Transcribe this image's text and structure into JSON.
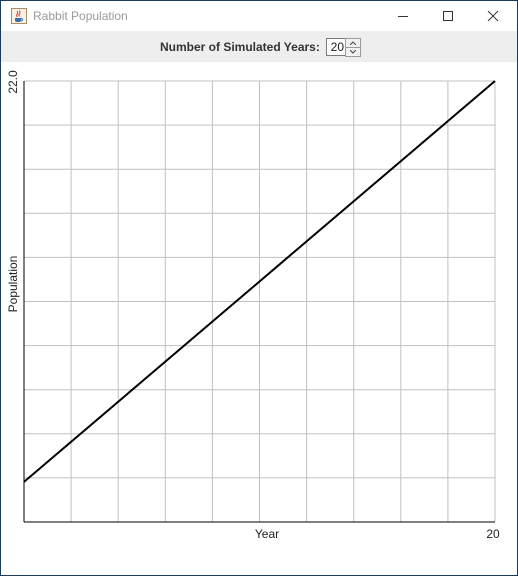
{
  "window": {
    "title": "Rabbit Population",
    "app_icon": "java-coffee-cup-icon",
    "controls": {
      "minimize_icon": "minimize-icon",
      "maximize_icon": "maximize-icon",
      "close_icon": "close-icon"
    }
  },
  "toolbar": {
    "years_label": "Number of Simulated Years:",
    "years_value": "20"
  },
  "chart_data": {
    "type": "line",
    "title": "",
    "xlabel": "Year",
    "ylabel": "Population",
    "x_tick_labels": [
      "20"
    ],
    "y_tick_labels": [
      "22.0"
    ],
    "xlim": [
      0,
      20
    ],
    "ylim": [
      0,
      22
    ],
    "grid": true,
    "series": [
      {
        "x": [
          0,
          20
        ],
        "y": [
          2,
          22
        ]
      }
    ],
    "colors": {
      "line": "#000000",
      "grid": "#c0c0c0",
      "axis": "#000000"
    }
  }
}
